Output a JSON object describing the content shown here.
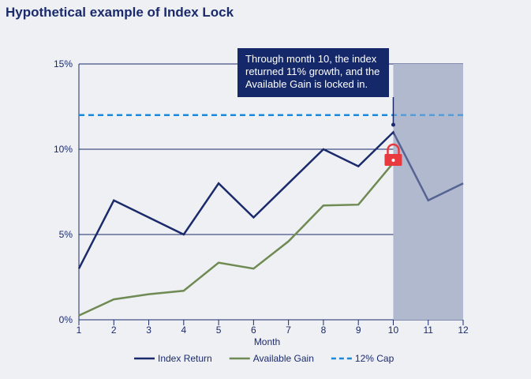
{
  "title": "Hypothetical example of Index Lock",
  "chart_data": {
    "type": "line",
    "title": "Hypothetical example of Index Lock",
    "xlabel": "Month",
    "ylabel": "",
    "x": [
      1,
      2,
      3,
      4,
      5,
      6,
      7,
      8,
      9,
      10,
      11,
      12
    ],
    "xlim": [
      1,
      12
    ],
    "ylim": [
      0,
      15
    ],
    "yticks": [
      "0%",
      "5%",
      "10%",
      "15%"
    ],
    "ytick_values": [
      0,
      5,
      10,
      15
    ],
    "grid": true,
    "legend_position": "bottom",
    "series": [
      {
        "name": "Index Return",
        "color": "#1b2a6b",
        "values": [
          3,
          7,
          6,
          5,
          8,
          6,
          8,
          10,
          9,
          11,
          7,
          8
        ]
      },
      {
        "name": "Available Gain",
        "color": "#6f8a52",
        "values": [
          0.25,
          1.2,
          1.5,
          1.7,
          3.35,
          3.0,
          4.6,
          6.7,
          6.75,
          9.2,
          null,
          null
        ]
      },
      {
        "name": "12% Cap",
        "color": "#1e88d6",
        "style": "dashed",
        "values": [
          12,
          12,
          12,
          12,
          12,
          12,
          12,
          12,
          12,
          12,
          12,
          12
        ]
      }
    ],
    "shaded_region": {
      "x_from": 10,
      "x_to": 12,
      "color": "#b1b9cf"
    },
    "annotation": {
      "text": "Through month 10, the index returned 11% growth, and the Available Gain is locked in.",
      "x": 10,
      "icon": "lock-icon",
      "lock_color": "#e8393f"
    }
  }
}
